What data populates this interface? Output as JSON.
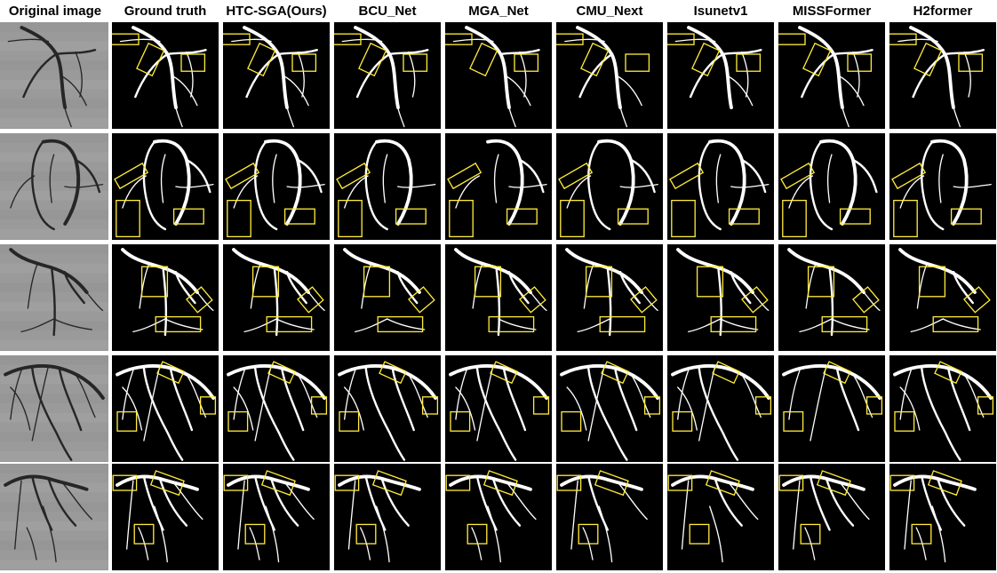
{
  "figure": {
    "column_headers": [
      "Original image",
      "Ground truth",
      "HTC-SGA(Ours)",
      "BCU_Net",
      "MGA_Net",
      "CMU_Next",
      "Isunetv1",
      "MISSFormer",
      "H2former"
    ],
    "rows": 5,
    "highlight_color": "#ffeb3b",
    "mask_background": "#000000",
    "vessel_color": "#ffffff",
    "angiogram_background": "#9a9a9a",
    "angiogram_vessel": "#262626"
  }
}
